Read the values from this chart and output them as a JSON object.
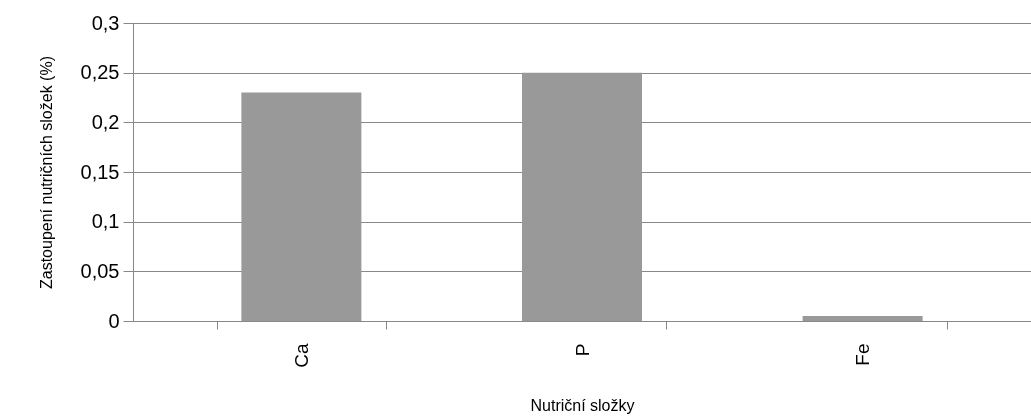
{
  "chart_data": {
    "type": "bar",
    "xlabel": "Nutriční složky",
    "ylabel": "Zastoupení nutričních složek (%)",
    "categories": [
      "Ca",
      "P",
      "Fe"
    ],
    "values": [
      0.23,
      0.25,
      0.005
    ],
    "color": "#999999",
    "ylim": [
      0,
      0.3
    ],
    "yticks": [
      {
        "value": 0,
        "label": "0"
      },
      {
        "value": 0.05,
        "label": "0,05"
      },
      {
        "value": 0.1,
        "label": "0,1"
      },
      {
        "value": 0.15,
        "label": "0,15"
      },
      {
        "value": 0.2,
        "label": "0,2"
      },
      {
        "value": 0.25,
        "label": "0,25"
      },
      {
        "value": 0.3,
        "label": "0,3"
      }
    ],
    "grid": "y"
  }
}
